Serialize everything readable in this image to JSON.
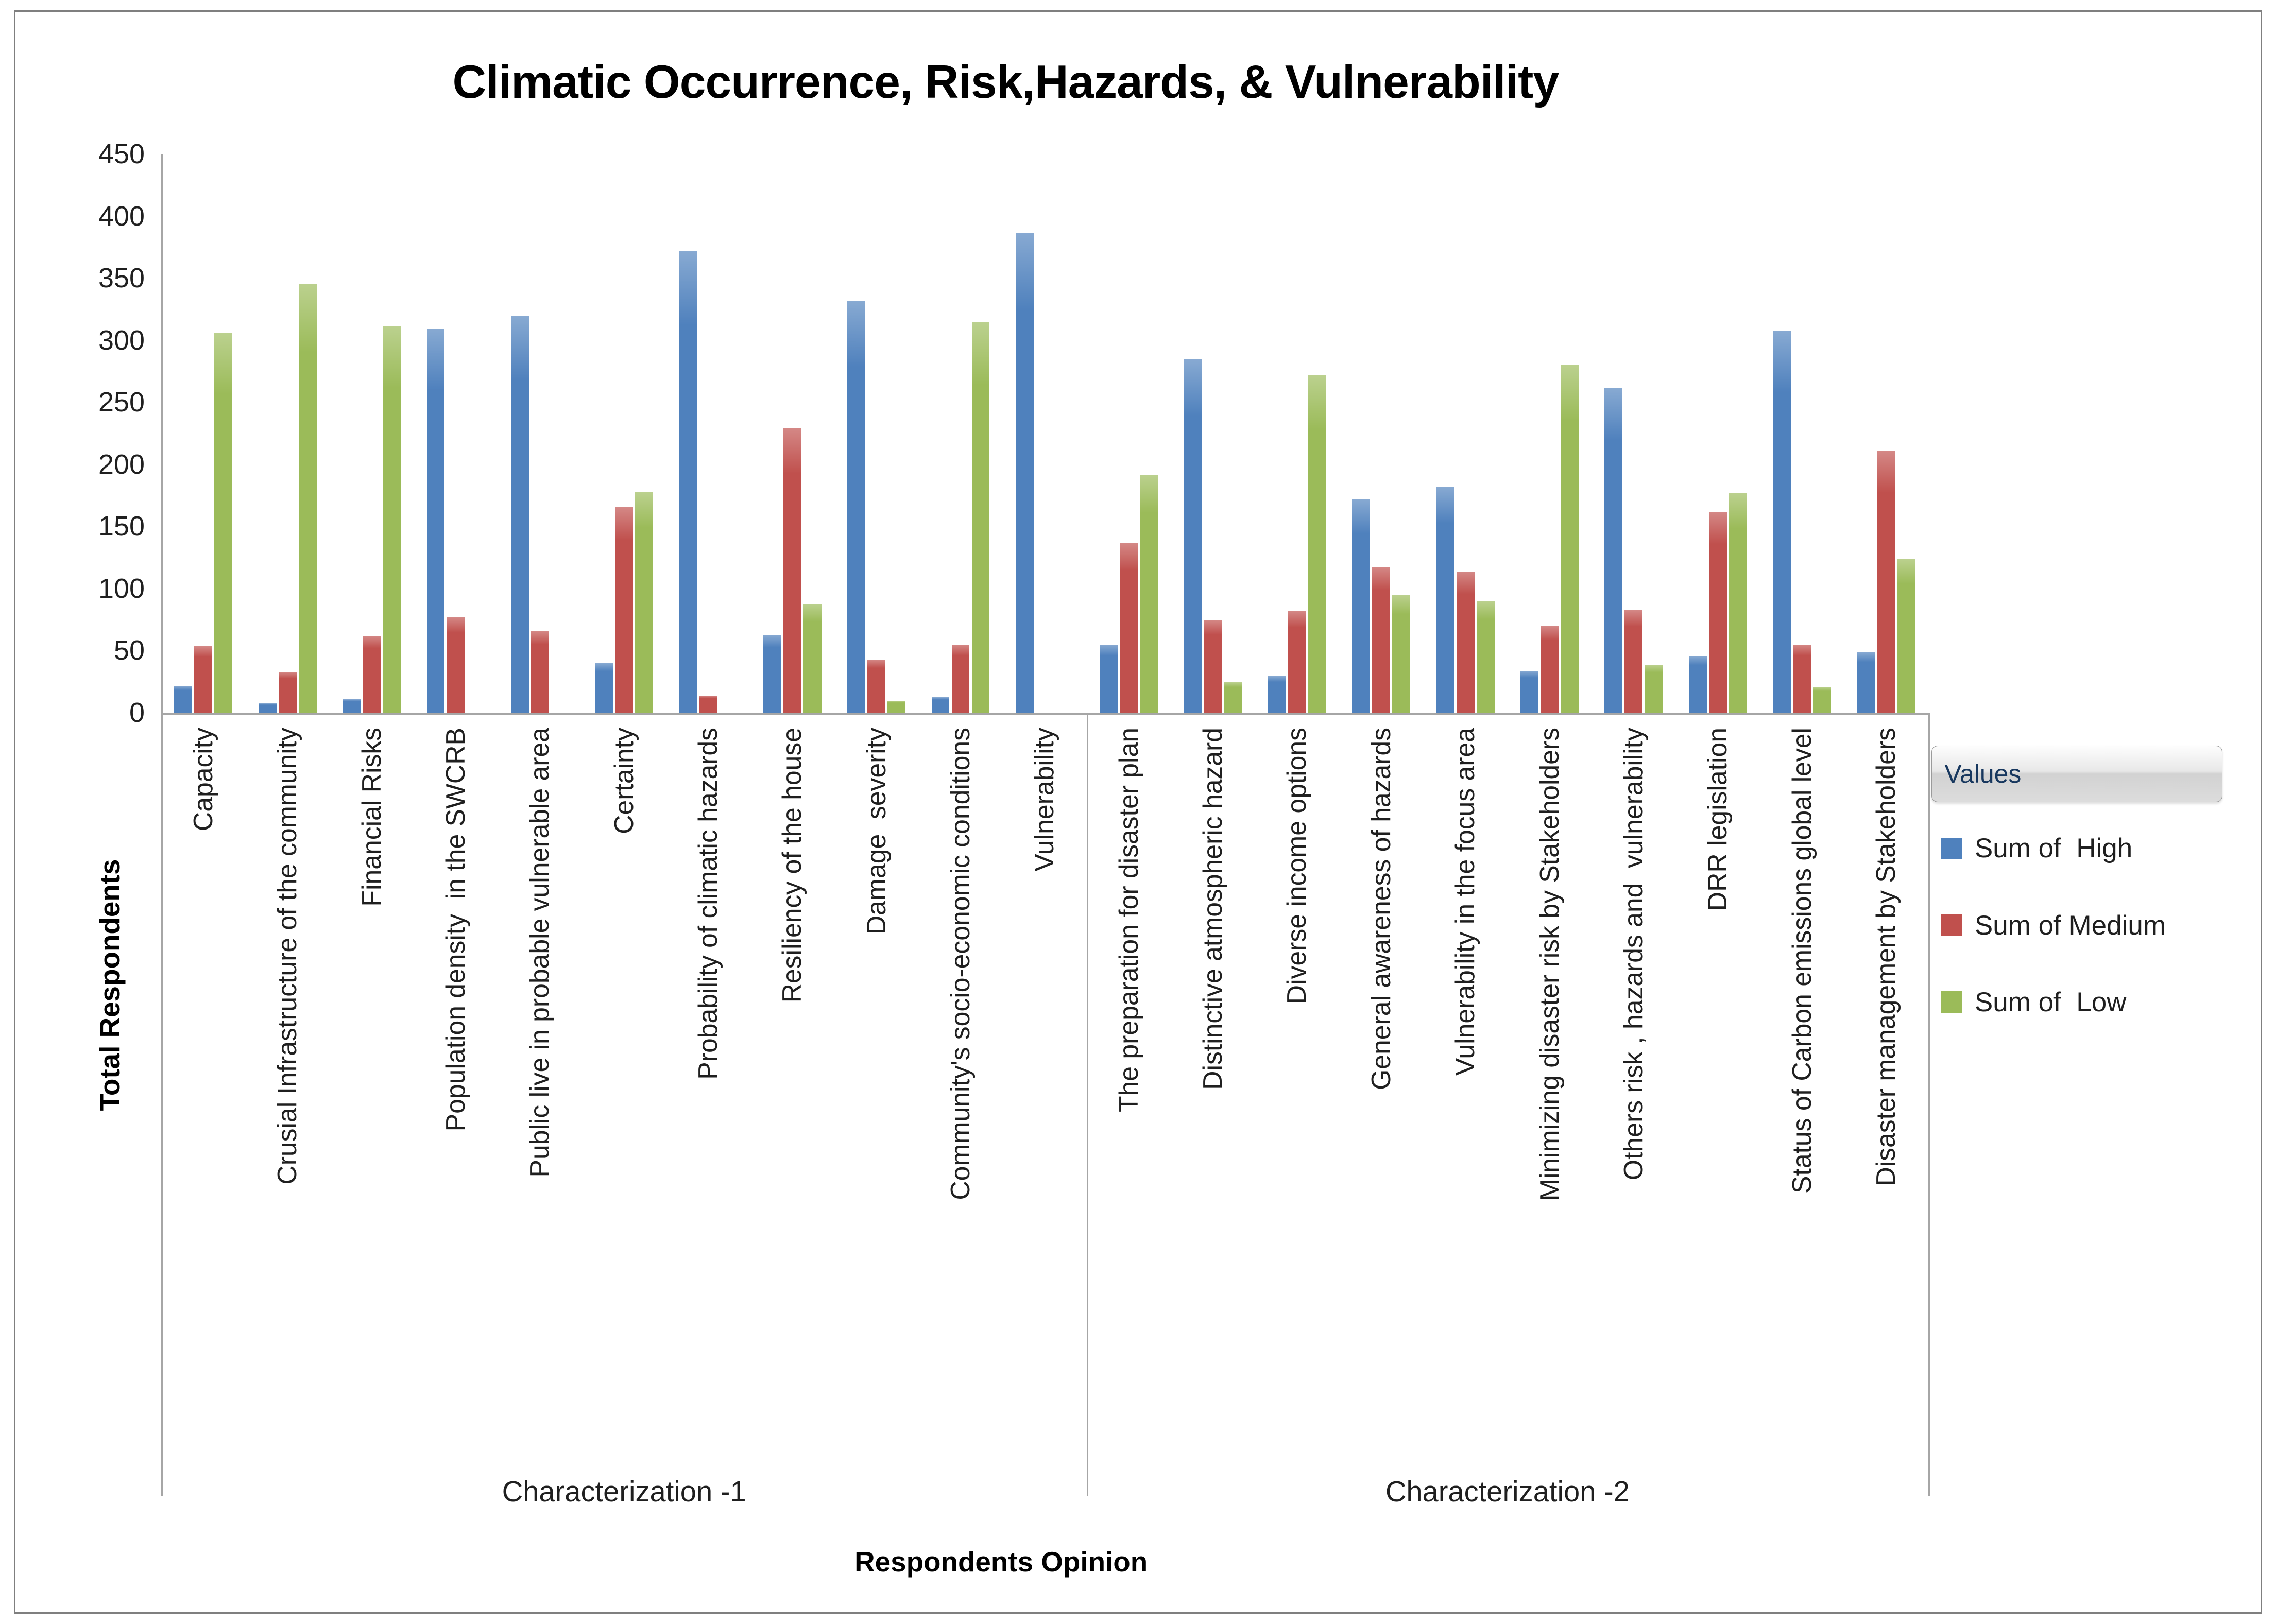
{
  "title_bar": {
    "title": "Climatic Occurrence, Risk,Hazards, & Vulnerability"
  },
  "legend": {
    "header": "Values",
    "items": [
      {
        "label": "Sum of  High",
        "color": "#4f81bd"
      },
      {
        "label": "Sum of Medium",
        "color": "#c0504d"
      },
      {
        "label": "Sum of  Low",
        "color": "#9bbb59"
      }
    ]
  },
  "colors": {
    "axis_line": "#a6a6a6",
    "frame_border": "#7f7f7f",
    "text": "#1f1f1f"
  },
  "chart_data": {
    "type": "bar",
    "title": "Climatic Occurrence, Risk,Hazards, & Vulnerability",
    "xlabel": "Respondents Opinion",
    "ylabel": "Total Respondents",
    "ylim": [
      0,
      450
    ],
    "ytick_step": 50,
    "grid": false,
    "legend_position": "right",
    "groups": [
      {
        "label": "Characterization -1",
        "categories": [
          "Capacity",
          "Crusial Infrastructure of the community",
          "Financial Risks",
          "Population density  in the SWCRB",
          "Public live in probable vulnerable area",
          "Certainty",
          "Probability of climatic hazards",
          "Resiliency of the house",
          "Damage  severity",
          "Community's socio-economic conditions",
          "Vulnerability"
        ]
      },
      {
        "label": "Characterization -2",
        "categories": [
          "The preparation for disaster plan",
          "Distinctive atmospheric hazard",
          "Diverse income options",
          "General awareness of hazards",
          "Vulnerability in the focus area",
          "Minimizing disaster risk by Stakeholders",
          "Others risk , hazards and  vulnerability",
          "DRR legislation",
          "Status of Carbon emissions global level",
          "Disaster management by Stakeholders"
        ]
      }
    ],
    "series": [
      {
        "name": "Sum of  High",
        "color": "#4f81bd",
        "values": [
          22,
          8,
          11,
          310,
          320,
          40,
          372,
          63,
          332,
          13,
          387,
          55,
          285,
          30,
          172,
          182,
          34,
          262,
          46,
          308,
          49
        ]
      },
      {
        "name": "Sum of Medium",
        "color": "#c0504d",
        "values": [
          54,
          33,
          62,
          77,
          66,
          166,
          14,
          230,
          43,
          55,
          0,
          137,
          75,
          82,
          118,
          114,
          70,
          83,
          162,
          55,
          211
        ]
      },
      {
        "name": "Sum of  Low",
        "color": "#9bbb59",
        "values": [
          306,
          346,
          312,
          0,
          0,
          178,
          0,
          88,
          10,
          315,
          0,
          192,
          25,
          272,
          95,
          90,
          281,
          39,
          177,
          21,
          124
        ]
      }
    ]
  }
}
